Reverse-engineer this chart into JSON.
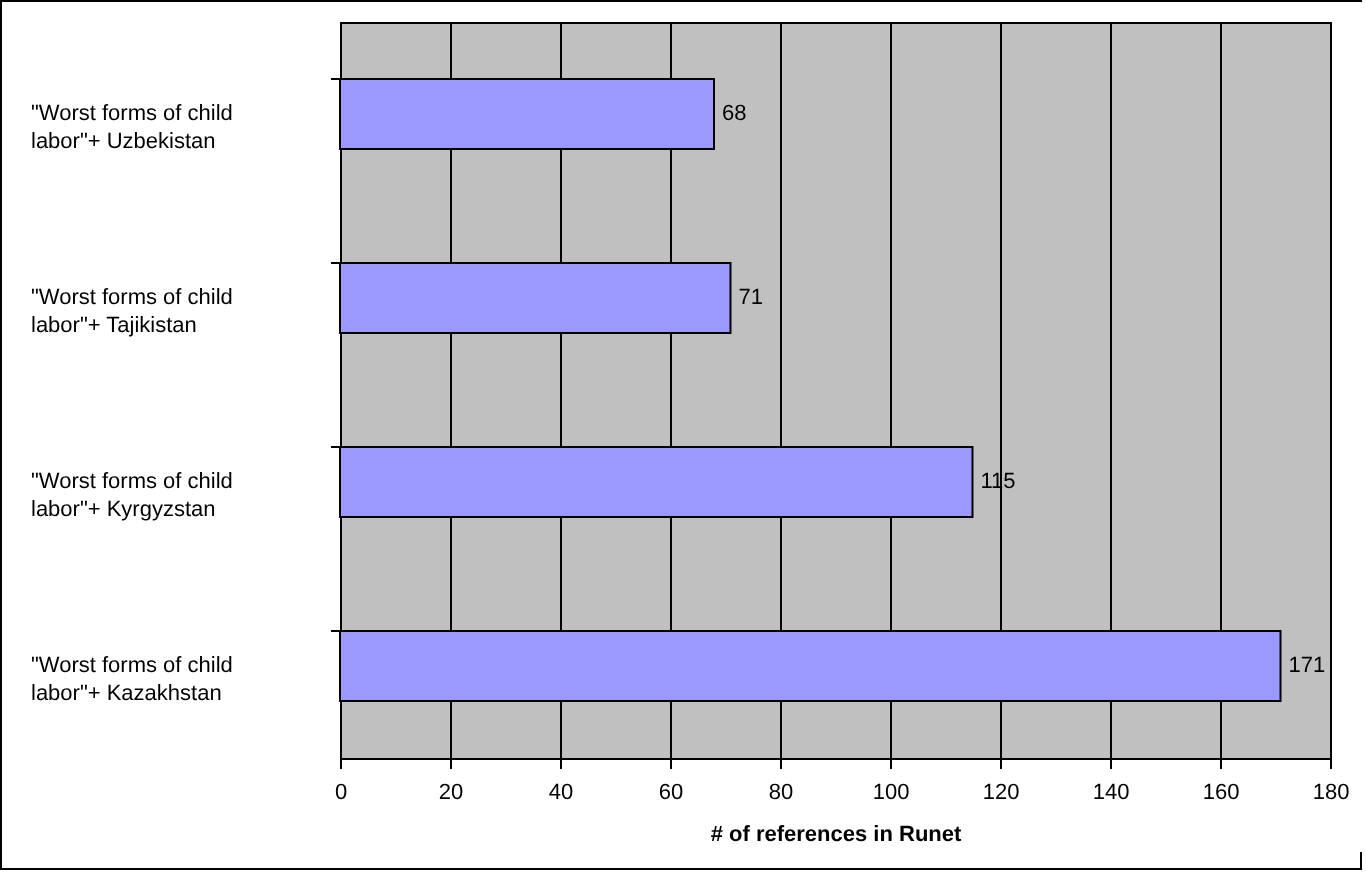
{
  "chart_data": {
    "type": "bar",
    "orientation": "horizontal",
    "xlabel": "# of references in Runet",
    "categories": [
      "\"Worst forms of child labor\"+ Uzbekistan",
      "\"Worst forms of child labor\"+ Tajikistan",
      "\"Worst forms of child labor\"+ Kyrgyzstan",
      "\"Worst forms of child labor\"+ Kazakhstan"
    ],
    "values": [
      68,
      71,
      115,
      171
    ],
    "color": "#9999ff",
    "xlim": [
      0,
      180
    ],
    "xticks": [
      0,
      20,
      40,
      60,
      80,
      100,
      120,
      140,
      160,
      180
    ],
    "grid": "x",
    "data_labels": true
  }
}
